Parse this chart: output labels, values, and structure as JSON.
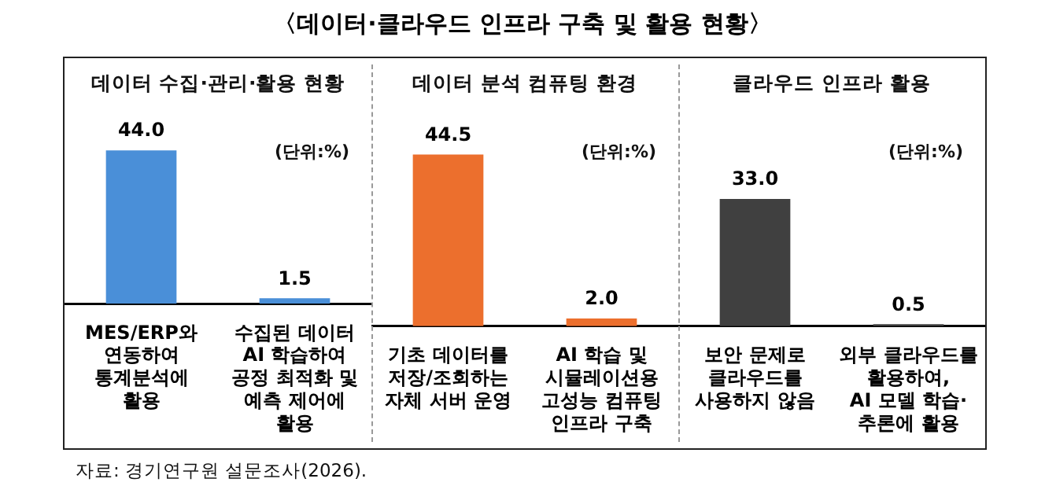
{
  "chart_data": [
    {
      "type": "bar",
      "title": "〈데이터·클라우드 인프라 구축 및 활용 현황〉",
      "subtitle": "데이터 수집·관리·활용 현황",
      "categories": [
        "MES/ERP와\n연동하여\n통계분석에\n활용",
        "수집된 데이터\nAI 학습하여\n공정 최적화 및\n예측 제어에\n활용"
      ],
      "values": [
        44.0,
        1.5
      ],
      "value_labels": [
        "44.0",
        "1.5"
      ],
      "color": "#4a8fd8",
      "annotations": [
        "(단위:%)",
        "자료: 경기연구원 설문조사(2026)."
      ]
    },
    {
      "type": "bar",
      "subtitle": "데이터 분석 컴퓨팅 환경",
      "categories": [
        "기초 데이터를\n저장/조회하는\n자체 서버 운영",
        "AI 학습 및\n시뮬레이션용\n고성능 컴퓨팅\n인프라 구축"
      ],
      "values": [
        44.5,
        2.0
      ],
      "value_labels": [
        "44.5",
        "2.0"
      ],
      "color": "#ec6f2d",
      "annotations": [
        "(단위:%)"
      ]
    },
    {
      "type": "bar",
      "subtitle": "클라우드 인프라 활용",
      "categories": [
        "보안 문제로\n클라우드를\n사용하지 않음",
        "외부 클라우드를\n활용하여,\nAI 모델 학습·\n추론에 활용"
      ],
      "values": [
        33.0,
        0.5
      ],
      "value_labels": [
        "33.0",
        "0.5"
      ],
      "color": "#404040",
      "annotations": [
        "(단위:%)"
      ]
    }
  ]
}
